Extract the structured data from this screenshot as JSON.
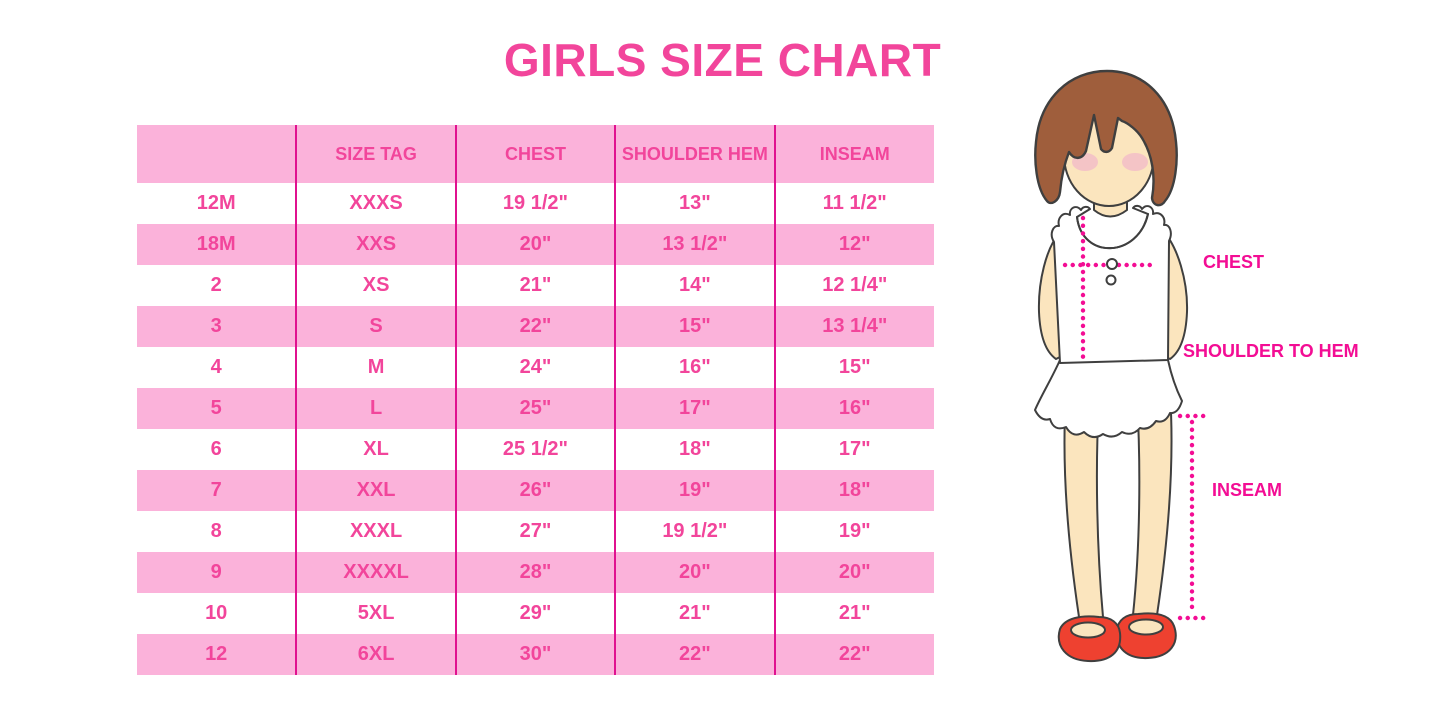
{
  "title": "GIRLS SIZE CHART",
  "chart_data": {
    "type": "table",
    "title": "GIRLS SIZE CHART",
    "columns": [
      "",
      "SIZE TAG",
      "CHEST",
      "SHOULDER HEM",
      "INSEAM"
    ],
    "rows": [
      [
        "12M",
        "XXXS",
        "19 1/2\"",
        "13\"",
        "11 1/2\""
      ],
      [
        "18M",
        "XXS",
        "20\"",
        "13 1/2\"",
        "12\""
      ],
      [
        "2",
        "XS",
        "21\"",
        "14\"",
        "12 1/4\""
      ],
      [
        "3",
        "S",
        "22\"",
        "15\"",
        "13 1/4\""
      ],
      [
        "4",
        "M",
        "24\"",
        "16\"",
        "15\""
      ],
      [
        "5",
        "L",
        "25\"",
        "17\"",
        "16\""
      ],
      [
        "6",
        "XL",
        "25 1/2\"",
        "18\"",
        "17\""
      ],
      [
        "7",
        "XXL",
        "26\"",
        "19\"",
        "18\""
      ],
      [
        "8",
        "XXXL",
        "27\"",
        "19 1/2\"",
        "19\""
      ],
      [
        "9",
        "XXXXL",
        "28\"",
        "20\"",
        "20\""
      ],
      [
        "10",
        "5XL",
        "29\"",
        "21\"",
        "21\""
      ],
      [
        "12",
        "6XL",
        "30\"",
        "22\"",
        "22\""
      ]
    ],
    "row_striping": "alternating white/pink starting white, header pink",
    "legend_position": "none",
    "grid": "vertical magenta separators only"
  },
  "figure": {
    "description": "cartoon girl with brown bob hair, white ruffled tank top, white scalloped skirt, red mary-jane shoes",
    "labels": {
      "chest": "CHEST",
      "shoulder_to_hem": "SHOULDER TO HEM",
      "inseam": "INSEAM"
    }
  },
  "colors": {
    "title_pink": "#F2459B",
    "table_text_pink": "#F2459B",
    "row_pink": "#FBB2DA",
    "row_white": "#FFFFFF",
    "grid_line_magenta": "#E0118F",
    "measure_magenta": "#F30D94",
    "hair_brown": "#9F5E3C",
    "skin": "#FBE5BE",
    "blush": "#F3BCC8",
    "shoe_red": "#EE4130",
    "outline": "#3F3F3F"
  }
}
